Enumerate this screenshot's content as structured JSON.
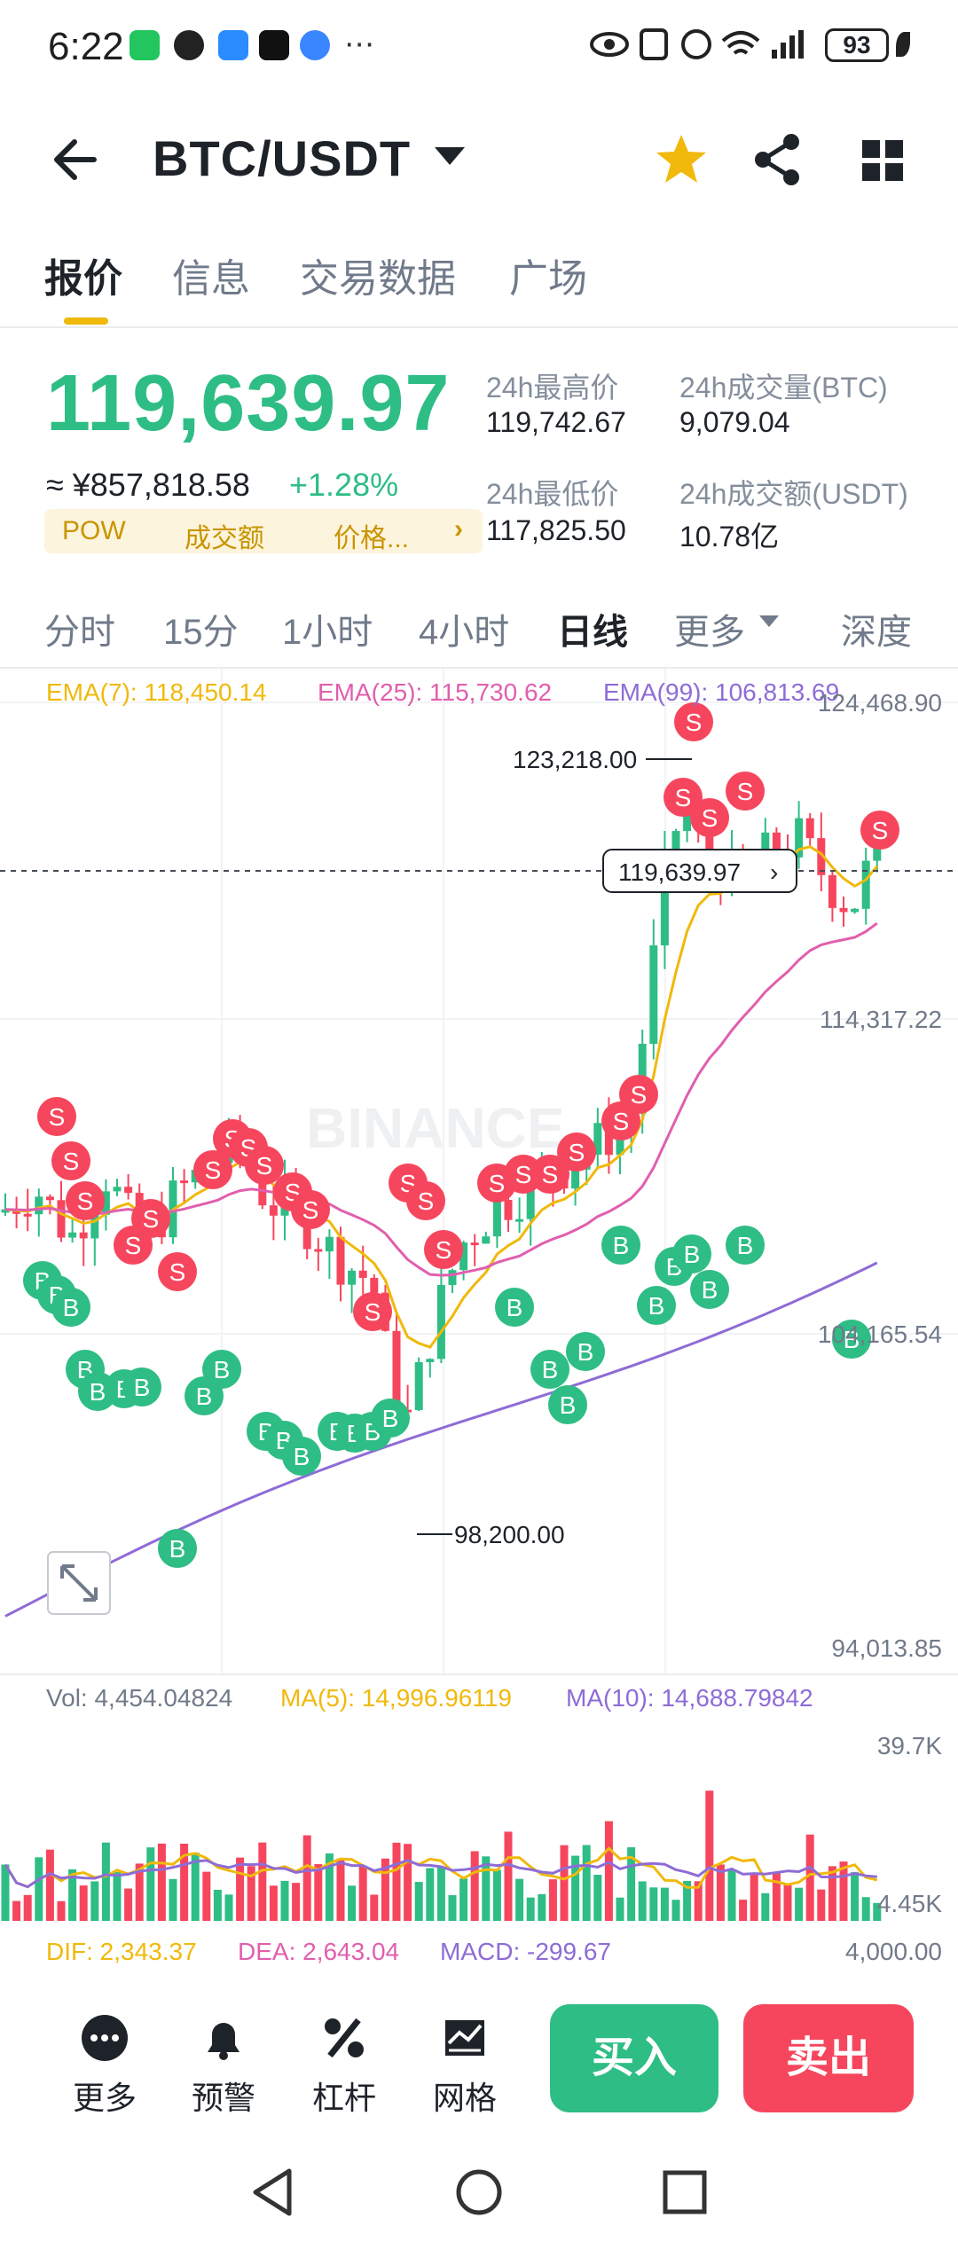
{
  "status_bar": {
    "time": "6:22",
    "icons_left": [
      "wechat-icon",
      "qq-icon",
      "app-icon",
      "mercedes-icon",
      "chat-icon",
      "more-dots-icon"
    ],
    "battery": "93",
    "icons_right": [
      "eye-icon",
      "nfc-icon",
      "alarm-icon",
      "wifi-icon",
      "4g-signal-icon",
      "signal-icon",
      "leaf-icon"
    ]
  },
  "header": {
    "pair": "BTC/USDT",
    "star_color": "#f0b90b"
  },
  "tabs": [
    "报价",
    "信息",
    "交易数据",
    "广场"
  ],
  "price_panel": {
    "last_price": "119,639.97",
    "cny_price": "≈ ¥857,818.58",
    "change": "+1.28%",
    "tags": [
      "POW",
      "成交额",
      "价格..."
    ],
    "stats": {
      "high_label": "24h最高价",
      "high": "119,742.67",
      "low_label": "24h最低价",
      "low": "117,825.50",
      "vol_btc_label": "24h成交量(BTC)",
      "vol_btc": "9,079.04",
      "vol_usdt_label": "24h成交额(USDT)",
      "vol_usdt": "10.78亿"
    }
  },
  "intervals": [
    "分时",
    "15分",
    "1小时",
    "4小时",
    "日线",
    "更多",
    "深度"
  ],
  "active_interval": "日线",
  "colors": {
    "up": "#2ebd85",
    "down": "#f6465d",
    "ema7": "#f0b90b",
    "ema25": "#e05fae",
    "ema99": "#8e6cd6",
    "accent": "#f0b90b"
  },
  "chart_data": {
    "type": "candlestick",
    "ema_labels": [
      "EMA(7): 118,450.14",
      "EMA(25): 115,730.62",
      "EMA(99): 106,813.69"
    ],
    "y_ticks": [
      "124,468.90",
      "114,317.22",
      "104,165.54",
      "94,013.85"
    ],
    "ylim": [
      94013.85,
      124468.9
    ],
    "current_price_label": "119,639.97",
    "current_price": 119639.97,
    "annot_high": "123,218.00",
    "annot_high_value": 123218.0,
    "annot_low": "98,200.00",
    "annot_low_value": 98200.0,
    "watermark": "BINANCE",
    "volume": {
      "labels": [
        "Vol: 4,454.04824",
        "MA(5): 14,996.96119",
        "MA(10): 14,688.79842"
      ],
      "y_ticks": [
        "39.7K",
        "4.45K"
      ],
      "ylim": [
        0,
        42000
      ]
    },
    "macd": {
      "labels": [
        "DIF: 2,343.37",
        "DEA: 2,643.04",
        "MACD: -299.67"
      ],
      "y_tick": "4,000.00"
    }
  },
  "actions": {
    "more": "更多",
    "alert": "预警",
    "margin": "杠杆",
    "grid": "网格",
    "buy": "买入",
    "sell": "卖出"
  }
}
